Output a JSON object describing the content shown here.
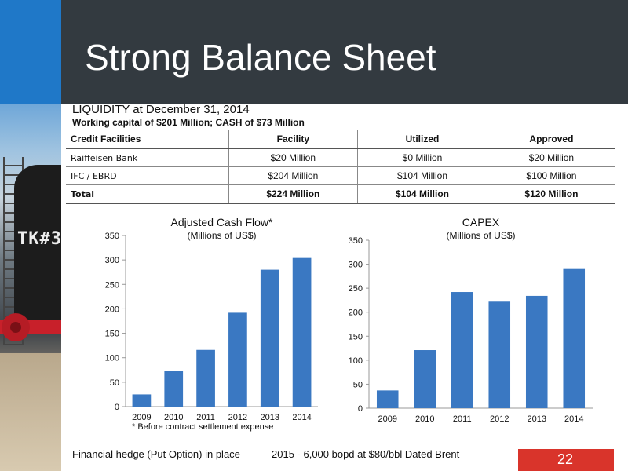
{
  "slide": {
    "title": "Strong Balance Sheet",
    "subtitle_liquidity": "LIQUIDITY at December 31, 2014",
    "subtitle_working_capital": "Working capital of $201 Million; CASH of $73 Million",
    "page_number": "22",
    "tank_label": "TK#3",
    "colors": {
      "header_band": "#333a40",
      "accent": "#1f78c8",
      "bar": "#3a78c2",
      "page_badge": "#d9342b"
    }
  },
  "credit_table": {
    "headers": [
      "Credit Facilities",
      "Facility",
      "Utilized",
      "Approved"
    ],
    "rows": [
      [
        "Raiffeisen Bank",
        "$20 Million",
        "$0 Million",
        "$20 Million"
      ],
      [
        "IFC / EBRD",
        "$204 Million",
        "$104 Million",
        "$100 Million"
      ]
    ],
    "total": [
      "Total",
      "$224 Million",
      "$104 Million",
      "$120 Million"
    ]
  },
  "footer": {
    "hedge_label": "Financial hedge (Put Option) in place",
    "hedge_detail": "2015 - 6,000 bopd at $80/bbl Dated Brent"
  },
  "chart_data": [
    {
      "type": "bar",
      "title": "Adjusted Cash Flow*",
      "subtitle": "(Millions of US$)",
      "footnote": "* Before contract settlement expense",
      "categories": [
        "2009",
        "2010",
        "2011",
        "2012",
        "2013",
        "2014"
      ],
      "values": [
        25,
        73,
        116,
        192,
        280,
        304
      ],
      "ylim": [
        0,
        350
      ],
      "yticks": [
        0,
        50,
        100,
        150,
        200,
        250,
        300,
        350
      ],
      "xlabel": "",
      "ylabel": "",
      "grid": false
    },
    {
      "type": "bar",
      "title": "CAPEX",
      "subtitle": "(Millions of US$)",
      "categories": [
        "2009",
        "2010",
        "2011",
        "2012",
        "2013",
        "2014"
      ],
      "values": [
        37,
        121,
        242,
        222,
        234,
        290
      ],
      "ylim": [
        0,
        350
      ],
      "yticks": [
        0,
        50,
        100,
        150,
        200,
        250,
        300,
        350
      ],
      "xlabel": "",
      "ylabel": "",
      "grid": false
    }
  ]
}
